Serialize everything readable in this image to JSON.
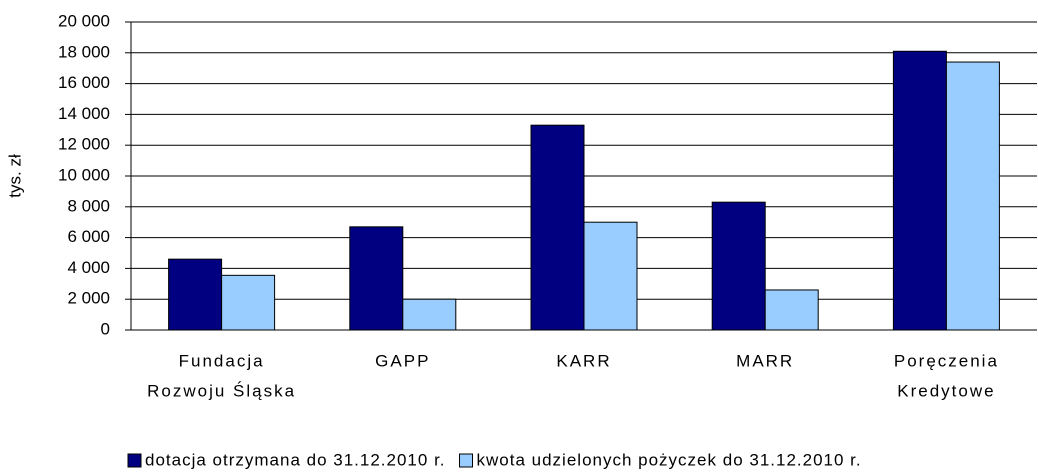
{
  "chart_data": {
    "type": "bar",
    "y_label": "tys. zł",
    "categories": [
      [
        "Fundacja",
        "Rozwoju Śląska"
      ],
      [
        "GAPP"
      ],
      [
        "KARR"
      ],
      [
        "MARR"
      ],
      [
        "Poręczenia",
        "Kredytowe"
      ]
    ],
    "series": [
      {
        "name": "dotacja otrzymana do 31.12.2010 r.",
        "color": "#000080",
        "values": [
          4600,
          6700,
          13300,
          8300,
          18100
        ]
      },
      {
        "name": "kwota udzielonych pożyczek do 31.12.2010 r.",
        "color": "#99ccff",
        "values": [
          3550,
          2000,
          7000,
          2600,
          17400
        ]
      }
    ],
    "ylim": [
      0,
      20000
    ],
    "yticks": [
      0,
      {
        "value": 2000,
        "label": "2 000"
      },
      {
        "value": 4000,
        "label": "4 000"
      },
      {
        "value": 6000,
        "label": "6 000"
      },
      {
        "value": 8000,
        "label": "8 000"
      },
      {
        "value": 10000,
        "label": "10 000"
      },
      {
        "value": 12000,
        "label": "12 000"
      },
      {
        "value": 14000,
        "label": "14 000"
      },
      {
        "value": 16000,
        "label": "16 000"
      },
      {
        "value": 18000,
        "label": "18 000"
      },
      {
        "value": 20000,
        "label": "20 000"
      }
    ],
    "grid": true
  }
}
